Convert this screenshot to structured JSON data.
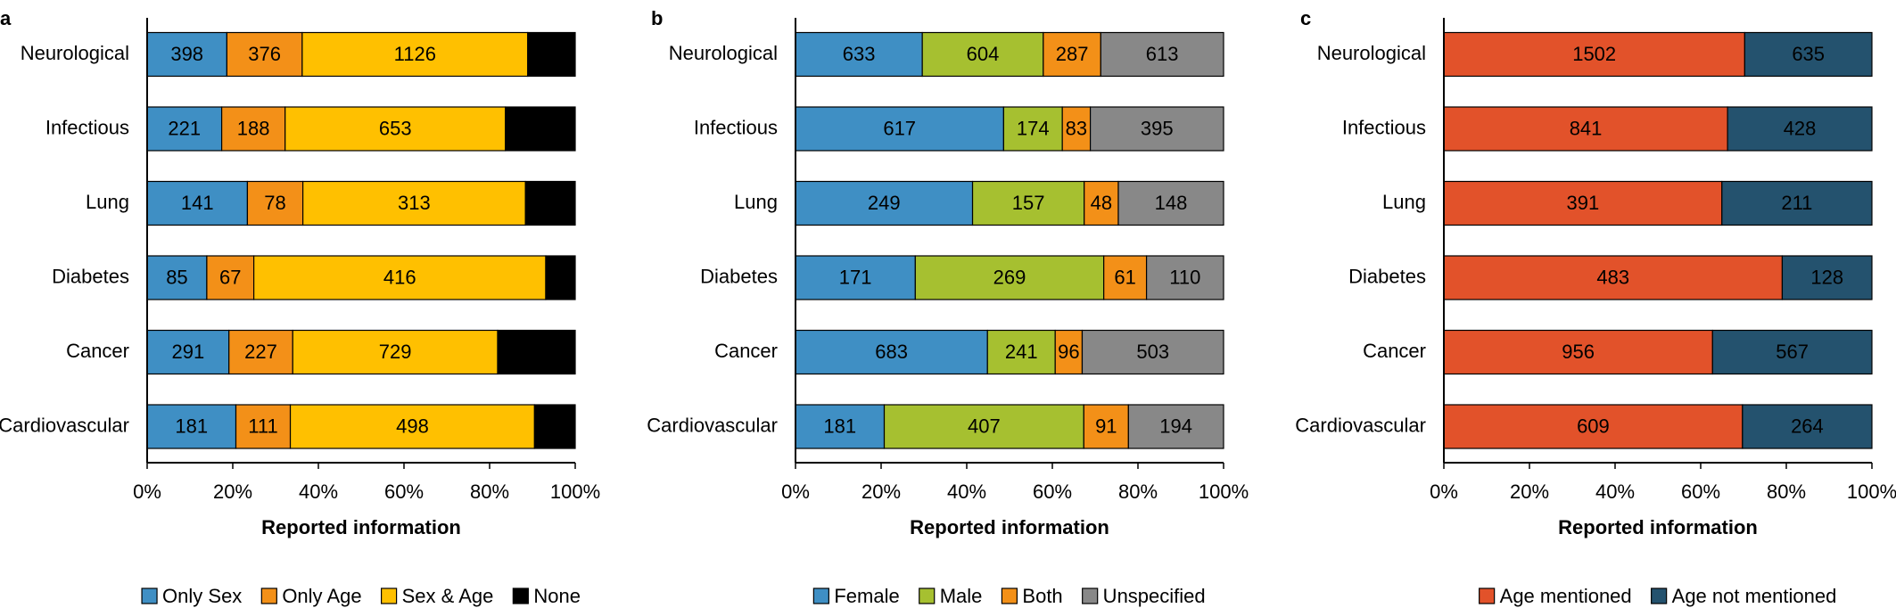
{
  "chart_data": [
    {
      "type": "bar",
      "orientation": "horizontal",
      "stacked": "percent",
      "panel": "a",
      "x_label": "Reported information",
      "categories": [
        "Neurological",
        "Infectious",
        "Lung",
        "Diabetes",
        "Cancer",
        "Cardiovascular"
      ],
      "series": [
        {
          "name": "Only Sex",
          "color": "#3f8fc4",
          "values": [
            398,
            221,
            141,
            85,
            291,
            181
          ]
        },
        {
          "name": "Only Age",
          "color": "#f39018",
          "values": [
            376,
            188,
            78,
            67,
            227,
            111
          ]
        },
        {
          "name": "Sex & Age",
          "color": "#ffc000",
          "values": [
            1126,
            653,
            313,
            416,
            729,
            498
          ]
        },
        {
          "name": "None",
          "color": "#000000",
          "values": [
            237,
            207,
            70,
            42,
            276,
            83
          ]
        }
      ],
      "xlim": [
        0,
        100
      ],
      "xticks": [
        {
          "value": 0,
          "label": "0%"
        },
        {
          "value": 20,
          "label": "20%"
        },
        {
          "value": 40,
          "label": "40%"
        },
        {
          "value": 60,
          "label": "60%"
        },
        {
          "value": 80,
          "label": "80%"
        },
        {
          "value": 100,
          "label": "100%"
        }
      ]
    },
    {
      "type": "bar",
      "orientation": "horizontal",
      "stacked": "percent",
      "panel": "b",
      "x_label": "Reported information",
      "categories": [
        "Neurological",
        "Infectious",
        "Lung",
        "Diabetes",
        "Cancer",
        "Cardiovascular"
      ],
      "series": [
        {
          "name": "Female",
          "color": "#3f8fc4",
          "values": [
            633,
            617,
            249,
            171,
            683,
            181
          ]
        },
        {
          "name": "Male",
          "color": "#a6c030",
          "values": [
            604,
            174,
            157,
            269,
            241,
            407
          ]
        },
        {
          "name": "Both",
          "color": "#f39018",
          "values": [
            287,
            83,
            48,
            61,
            96,
            91
          ]
        },
        {
          "name": "Unspecified",
          "color": "#888888",
          "values": [
            613,
            395,
            148,
            110,
            503,
            194
          ]
        }
      ],
      "xlim": [
        0,
        100
      ],
      "xticks": [
        {
          "value": 0,
          "label": "0%"
        },
        {
          "value": 20,
          "label": "20%"
        },
        {
          "value": 40,
          "label": "40%"
        },
        {
          "value": 60,
          "label": "60%"
        },
        {
          "value": 80,
          "label": "80%"
        },
        {
          "value": 100,
          "label": "100%"
        }
      ]
    },
    {
      "type": "bar",
      "orientation": "horizontal",
      "stacked": "percent",
      "panel": "c",
      "x_label": "Reported information",
      "categories": [
        "Neurological",
        "Infectious",
        "Lung",
        "Diabetes",
        "Cancer",
        "Cardiovascular"
      ],
      "series": [
        {
          "name": "Age mentioned",
          "color": "#e2522a",
          "values": [
            1502,
            841,
            391,
            483,
            956,
            609
          ]
        },
        {
          "name": "Age not mentioned",
          "color": "#24526e",
          "values": [
            635,
            428,
            211,
            128,
            567,
            264
          ]
        }
      ],
      "xlim": [
        0,
        100
      ],
      "xticks": [
        {
          "value": 0,
          "label": "0%"
        },
        {
          "value": 20,
          "label": "20%"
        },
        {
          "value": 40,
          "label": "40%"
        },
        {
          "value": 60,
          "label": "60%"
        },
        {
          "value": 80,
          "label": "80%"
        },
        {
          "value": 100,
          "label": "100%"
        }
      ]
    }
  ]
}
